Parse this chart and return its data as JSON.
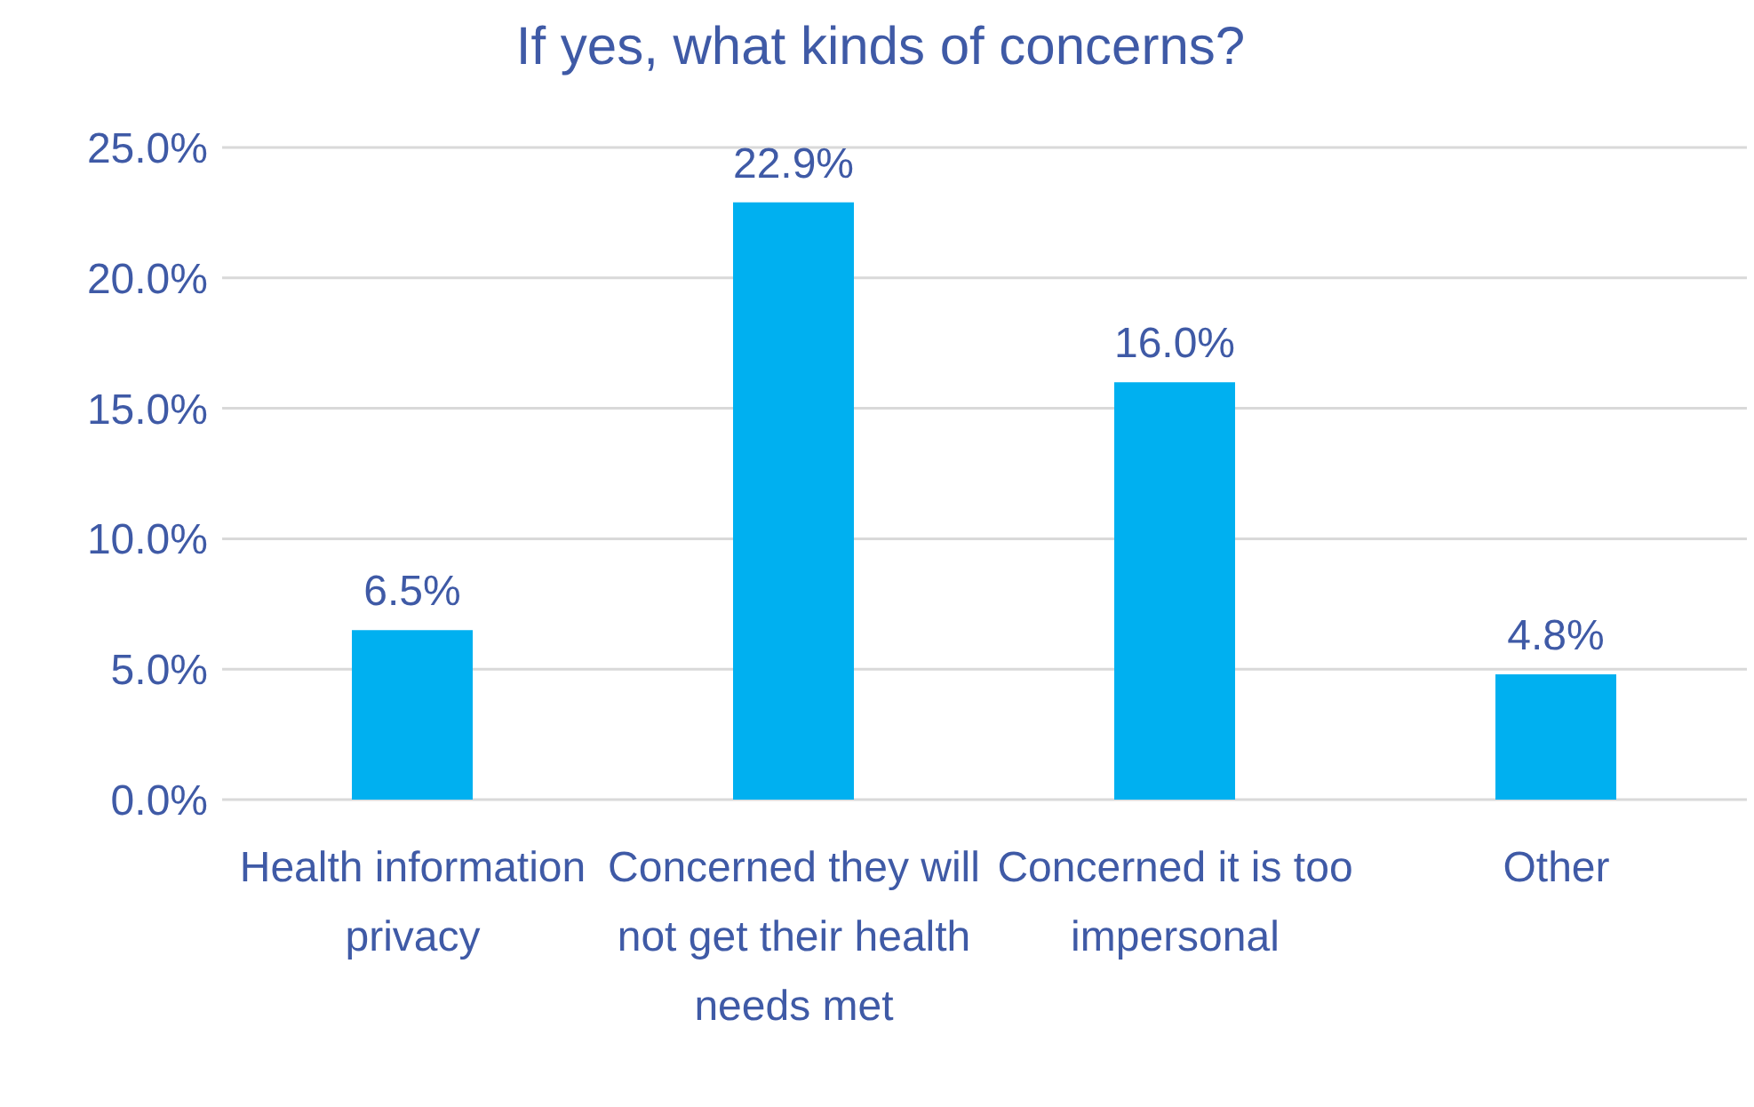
{
  "chart_data": {
    "type": "bar",
    "title": "If yes, what kinds of concerns?",
    "categories": [
      "Health information privacy",
      "Concerned they will not get their health needs met",
      "Concerned it is too impersonal",
      "Other"
    ],
    "values": [
      6.5,
      22.9,
      16.0,
      4.8
    ],
    "value_labels": [
      "6.5%",
      "22.9%",
      "16.0%",
      "4.8%"
    ],
    "color": "#00b0f0",
    "ylim": [
      0,
      25
    ],
    "yticks": [
      {
        "value": 0,
        "label": "0.0%"
      },
      {
        "value": 5,
        "label": "5.0%"
      },
      {
        "value": 10,
        "label": "10.0%"
      },
      {
        "value": 15,
        "label": "15.0%"
      },
      {
        "value": 20,
        "label": "20.0%"
      },
      {
        "value": 25,
        "label": "25.0%"
      }
    ],
    "grid": "y"
  }
}
